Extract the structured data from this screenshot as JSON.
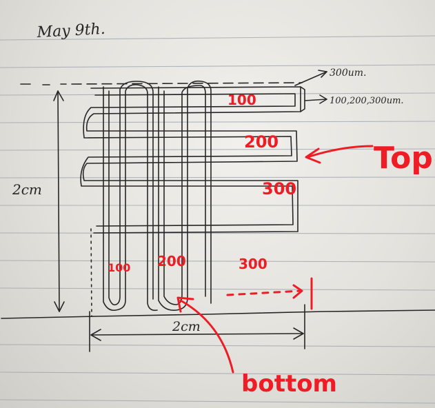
{
  "note": {
    "date": "May 9th.",
    "top_spacing_label": "300um.",
    "widths_label": "100,200,300um.",
    "height_label": "2cm",
    "width_label": "2cm"
  },
  "channels": {
    "horizontal": [
      "100",
      "200",
      "300"
    ],
    "vertical": [
      "100",
      "200",
      "300"
    ]
  },
  "callouts": {
    "top": "Top",
    "bottom": "bottom"
  },
  "colors": {
    "paper": "#ecebe7",
    "rule_line": "#9aa2ad",
    "pencil": "#262626",
    "red_pen": "#ee1c25"
  }
}
